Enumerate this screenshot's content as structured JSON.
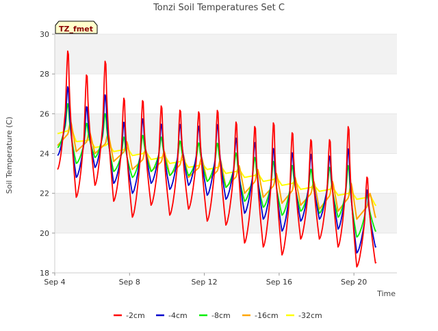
{
  "chart_data": {
    "type": "line",
    "title": "Tonzi Soil Temperatures Set C",
    "xlabel": "Time",
    "ylabel": "Soil Temperature (C)",
    "annotation": "TZ_fmet",
    "ylim": [
      18,
      30
    ],
    "xlim": [
      4.0,
      22.3
    ],
    "x_unit": "day of September",
    "x_ticks": [
      {
        "value": 4,
        "label": "Sep 4"
      },
      {
        "value": 8,
        "label": "Sep 8"
      },
      {
        "value": 12,
        "label": "Sep 12"
      },
      {
        "value": 16,
        "label": "Sep 16"
      },
      {
        "value": 20,
        "label": "Sep 20"
      }
    ],
    "y_ticks": [
      18,
      20,
      22,
      24,
      26,
      28,
      30
    ],
    "grid": "horizontal bands",
    "legend_position": "bottom",
    "days": [
      4,
      5,
      6,
      7,
      8,
      9,
      10,
      11,
      12,
      13,
      14,
      15,
      16,
      17,
      18,
      19,
      20,
      21
    ],
    "series": [
      {
        "name": "-2cm",
        "color": "#ff0000",
        "daily_max": [
          29.4,
          28.2,
          28.9,
          27.0,
          26.9,
          26.6,
          26.4,
          26.3,
          26.4,
          25.8,
          25.6,
          25.8,
          25.3,
          24.9,
          24.9,
          25.6,
          23.0,
          22.1
        ],
        "daily_min": [
          23.2,
          21.8,
          22.4,
          21.6,
          20.8,
          21.4,
          20.9,
          21.2,
          20.6,
          20.4,
          19.5,
          19.3,
          18.9,
          19.7,
          19.7,
          19.3,
          18.3,
          18.5
        ]
      },
      {
        "name": "-4cm",
        "color": "#0000cc",
        "daily_max": [
          27.5,
          26.5,
          27.1,
          25.7,
          25.9,
          25.6,
          25.6,
          25.5,
          25.6,
          24.9,
          24.7,
          24.4,
          24.2,
          24.1,
          24.0,
          24.4,
          22.3,
          21.8
        ],
        "daily_min": [
          23.9,
          22.8,
          23.3,
          22.5,
          22.0,
          22.5,
          22.2,
          22.4,
          21.9,
          21.7,
          21.0,
          20.7,
          20.1,
          20.6,
          20.7,
          20.2,
          19.0,
          19.3
        ]
      },
      {
        "name": "-8cm",
        "color": "#00ee00",
        "daily_max": [
          26.6,
          25.6,
          26.1,
          24.9,
          25.0,
          24.9,
          24.7,
          24.6,
          24.6,
          24.1,
          23.9,
          23.7,
          23.5,
          23.3,
          23.4,
          23.5,
          22.0,
          21.3
        ],
        "daily_min": [
          24.3,
          23.5,
          23.8,
          23.1,
          22.8,
          23.1,
          22.9,
          22.9,
          22.6,
          22.3,
          21.6,
          21.3,
          20.9,
          21.1,
          21.0,
          20.8,
          19.8,
          20.1
        ]
      },
      {
        "name": "-16cm",
        "color": "#ffa500",
        "daily_max": [
          25.6,
          25.1,
          25.0,
          24.6,
          24.2,
          24.1,
          24.0,
          23.8,
          23.7,
          23.4,
          23.2,
          23.0,
          22.8,
          22.6,
          22.6,
          22.5,
          22.0,
          21.0
        ],
        "daily_min": [
          24.4,
          24.1,
          24.0,
          23.6,
          23.2,
          23.1,
          22.9,
          22.8,
          22.6,
          22.3,
          22.0,
          21.8,
          21.5,
          21.4,
          21.2,
          21.1,
          20.7,
          20.8
        ]
      },
      {
        "name": "-32cm",
        "color": "#ffff00",
        "daily_max": [
          25.3,
          24.7,
          24.5,
          24.3,
          24.1,
          23.9,
          23.7,
          23.5,
          23.4,
          23.2,
          23.0,
          22.8,
          22.6,
          22.4,
          22.3,
          22.1,
          21.9,
          21.6
        ],
        "daily_min": [
          25.0,
          24.6,
          24.3,
          24.1,
          23.9,
          23.7,
          23.5,
          23.3,
          23.2,
          23.0,
          22.8,
          22.6,
          22.4,
          22.2,
          22.1,
          21.9,
          21.7,
          21.4
        ]
      }
    ]
  }
}
